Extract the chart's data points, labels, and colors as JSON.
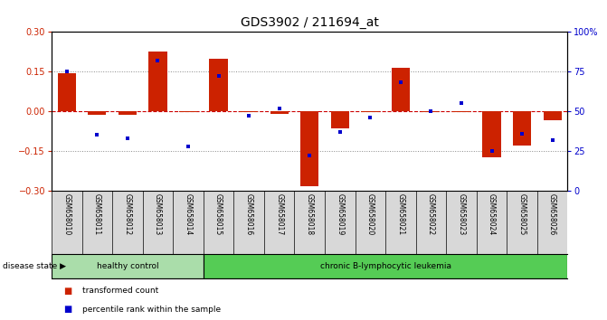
{
  "title": "GDS3902 / 211694_at",
  "samples": [
    "GSM658010",
    "GSM658011",
    "GSM658012",
    "GSM658013",
    "GSM658014",
    "GSM658015",
    "GSM658016",
    "GSM658017",
    "GSM658018",
    "GSM658019",
    "GSM658020",
    "GSM658021",
    "GSM658022",
    "GSM658023",
    "GSM658024",
    "GSM658025",
    "GSM658026"
  ],
  "red_values": [
    0.143,
    -0.012,
    -0.012,
    0.225,
    -0.005,
    0.2,
    -0.005,
    -0.01,
    -0.285,
    -0.065,
    -0.005,
    0.165,
    -0.005,
    -0.005,
    -0.175,
    -0.13,
    -0.035
  ],
  "blue_values": [
    75,
    35,
    33,
    82,
    28,
    72,
    47,
    52,
    22,
    37,
    46,
    68,
    50,
    55,
    25,
    36,
    32
  ],
  "group1_count": 5,
  "group1_label": "healthy control",
  "group2_label": "chronic B-lymphocytic leukemia",
  "group1_color": "#aaddaa",
  "group2_color": "#55cc55",
  "disease_state_label": "disease state",
  "ylim_left": [
    -0.3,
    0.3
  ],
  "ylim_right": [
    0,
    100
  ],
  "yticks_left": [
    -0.3,
    -0.15,
    0,
    0.15,
    0.3
  ],
  "yticks_right": [
    0,
    25,
    50,
    75,
    100
  ],
  "ytick_right_labels": [
    "0",
    "25",
    "50",
    "75",
    "100%"
  ],
  "hline_color": "#cc0000",
  "bar_color_red": "#cc2200",
  "bar_color_blue": "#0000cc",
  "dotted_line_color": "#888888",
  "background_plot": "#ffffff",
  "background_xticklabels": "#d8d8d8",
  "title_fontsize": 10,
  "tick_fontsize": 7,
  "bar_width": 0.6
}
